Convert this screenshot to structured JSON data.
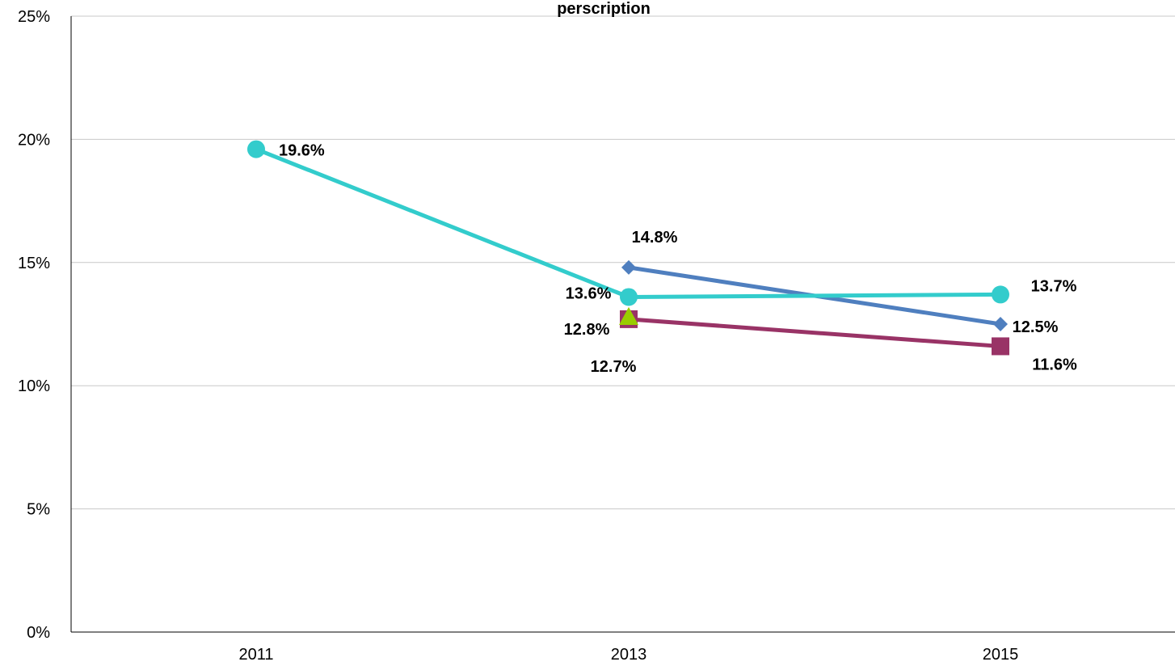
{
  "chart_data": {
    "type": "line",
    "title": "perscription",
    "xlabel": "",
    "ylabel": "",
    "categories": [
      "2011",
      "2013",
      "2015"
    ],
    "ylim": [
      0,
      25
    ],
    "y_ticks": [
      "0%",
      "5%",
      "10%",
      "15%",
      "20%",
      "25%"
    ],
    "y_tick_values": [
      0,
      5,
      10,
      15,
      20,
      25
    ],
    "grid": true,
    "legend": "none",
    "series": [
      {
        "color": "#4F7FBF",
        "marker": "diamond",
        "values": [
          null,
          14.8,
          12.5
        ],
        "labels": [
          null,
          "14.8%",
          "12.5%"
        ]
      },
      {
        "color": "#993366",
        "marker": "square",
        "values": [
          null,
          12.7,
          11.6
        ],
        "labels": [
          null,
          "12.7%",
          "11.6%"
        ]
      },
      {
        "color": "#99CC00",
        "marker": "triangle",
        "values": [
          null,
          12.8,
          null
        ],
        "labels": [
          null,
          "12.8%",
          null
        ]
      },
      {
        "color": "#33CCCC",
        "marker": "circle",
        "values": [
          19.6,
          13.6,
          13.7
        ],
        "labels": [
          "19.6%",
          "13.6%",
          "13.7%"
        ]
      }
    ]
  }
}
